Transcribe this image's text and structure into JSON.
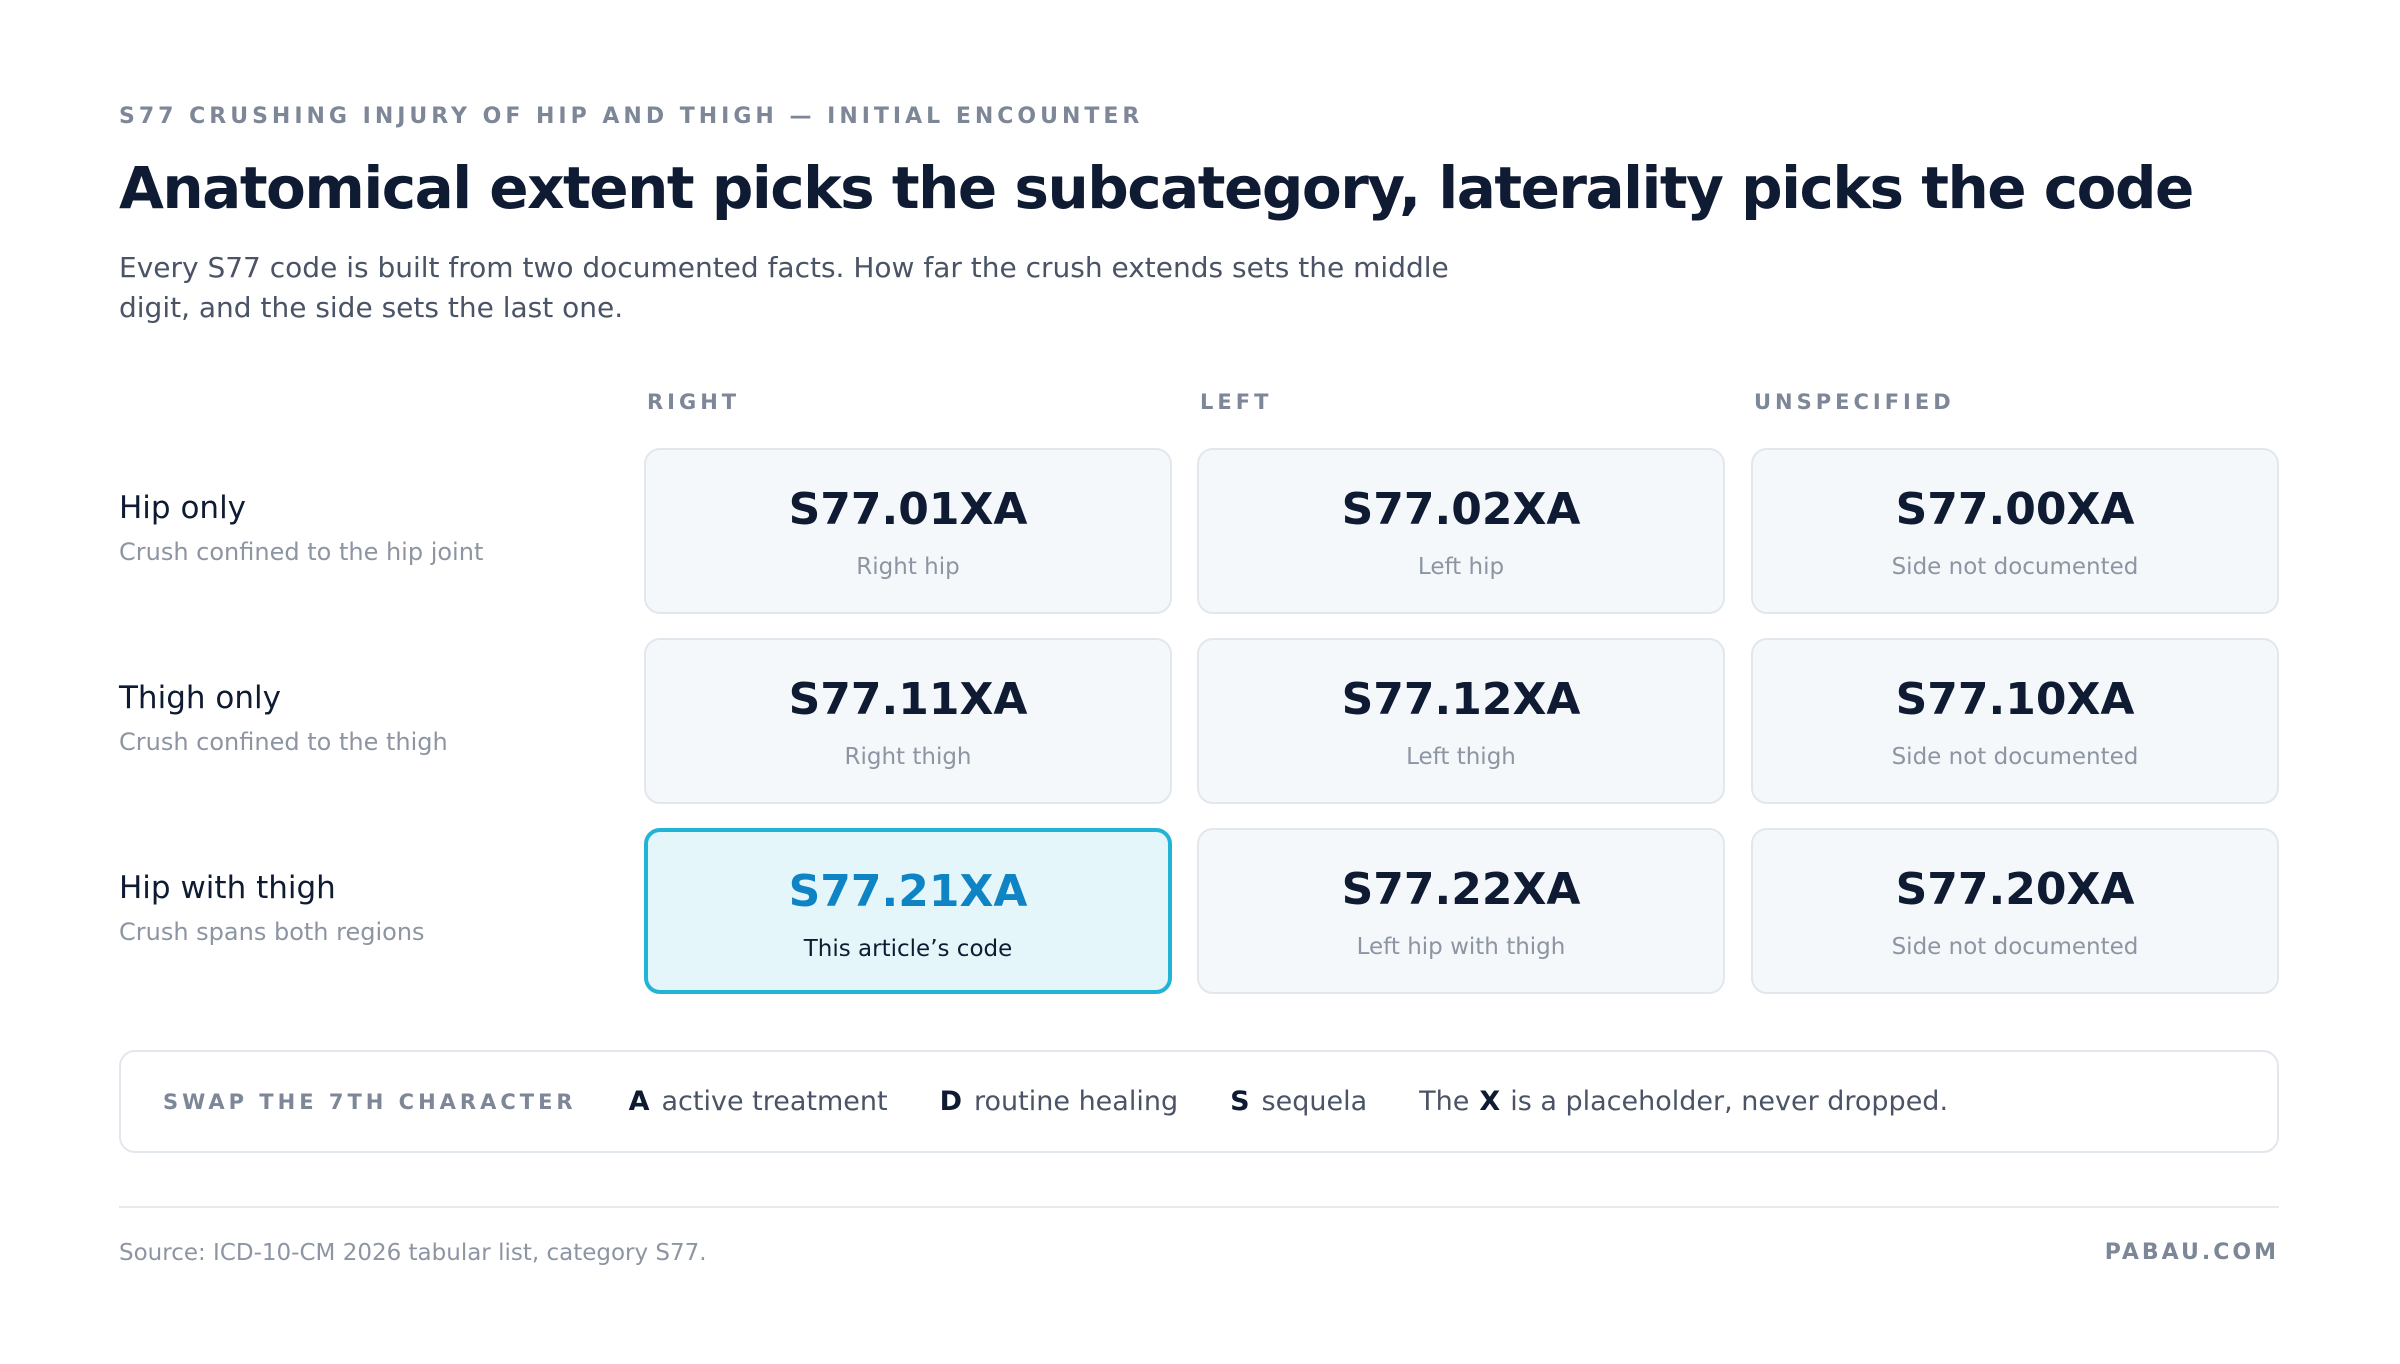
{
  "header": {
    "eyebrow": "S77 CRUSHING INJURY OF HIP AND THIGH — INITIAL ENCOUNTER",
    "title": "Anatomical extent picks the subcategory, laterality picks the code",
    "subtitle": "Every S77 code is built from two documented facts. How far the crush extends sets the middle digit, and the side sets the last one."
  },
  "table": {
    "columns": [
      "RIGHT",
      "LEFT",
      "UNSPECIFIED"
    ],
    "rows": [
      {
        "label": "Hip only",
        "description": "Crush confined to the hip joint",
        "cells": [
          {
            "code": "S77.01XA",
            "note": "Right hip"
          },
          {
            "code": "S77.02XA",
            "note": "Left hip"
          },
          {
            "code": "S77.00XA",
            "note": "Side not documented"
          }
        ]
      },
      {
        "label": "Thigh only",
        "description": "Crush confined to the thigh",
        "cells": [
          {
            "code": "S77.11XA",
            "note": "Right thigh"
          },
          {
            "code": "S77.12XA",
            "note": "Left thigh"
          },
          {
            "code": "S77.10XA",
            "note": "Side not documented"
          }
        ]
      },
      {
        "label": "Hip with thigh",
        "description": "Crush spans both regions",
        "cells": [
          {
            "code": "S77.21XA",
            "note": "This article’s code",
            "highlighted": true
          },
          {
            "code": "S77.22XA",
            "note": "Left hip with thigh"
          },
          {
            "code": "S77.20XA",
            "note": "Side not documented"
          }
        ]
      }
    ]
  },
  "legend": {
    "label": "SWAP THE 7TH CHARACTER",
    "items": [
      {
        "key": "A",
        "text": "active treatment"
      },
      {
        "key": "D",
        "text": "routine healing"
      },
      {
        "key": "S",
        "text": "sequela"
      }
    ],
    "note_before": "The",
    "note_key": "X",
    "note_after": "is a placeholder, never dropped."
  },
  "footer": {
    "source": "Source: ICD-10-CM 2026 tabular list, category S77.",
    "brand": "PABAU.COM"
  }
}
